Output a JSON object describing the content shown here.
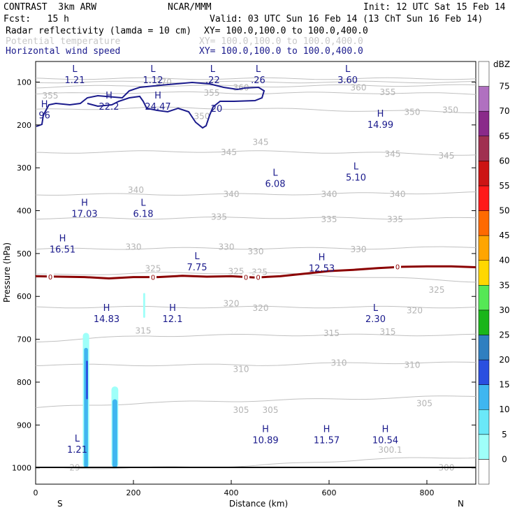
{
  "header": {
    "title": "CONTRAST  3km ARW",
    "source": "NCAR/MMM",
    "init": "Init: 12 UTC Sat 15 Feb 14",
    "fcst": "Fcst:   15 h",
    "valid": "Valid: 03 UTC Sun 16 Feb 14 (13 ChT Sun 16 Feb 14)",
    "fields": [
      {
        "name": "Radar reflectivity (lamda = 10 cm)",
        "xy": "XY= 100.0,100.0 to 100.0,400.0",
        "color": "#000000"
      },
      {
        "name": "Potential temperature",
        "xy": "XY= 100.0,100.0 to 100.0,400.0",
        "color": "#c8c8c8"
      },
      {
        "name": "Horizontal wind speed",
        "xy": "XY= 100.0,100.0 to 100.0,400.0",
        "color": "#1a1a8c"
      }
    ]
  },
  "chart_data": {
    "type": "cross-section",
    "xlabel": "Distance (km)",
    "ylabel": "Pressure (hPa)",
    "xlim": [
      0,
      900
    ],
    "ylim": [
      1038,
      52
    ],
    "x_ticks": [
      0,
      200,
      400,
      600,
      800
    ],
    "y_ticks": [
      100,
      200,
      300,
      400,
      500,
      600,
      700,
      800,
      900,
      1000
    ],
    "left_label": "S",
    "right_label": "N",
    "colorbar": {
      "unit": "dBZ",
      "levels": [
        "0",
        "5",
        "10",
        "15",
        "20",
        "25",
        "30",
        "35",
        "40",
        "45",
        "50",
        "55",
        "60",
        "65",
        "70",
        "75"
      ],
      "colors": [
        "#ffffff",
        "#9ffff9",
        "#6ae8f8",
        "#3fb6f0",
        "#2a4fe0",
        "#2f7fc0",
        "#1ab51a",
        "#55e855",
        "#ffd700",
        "#ffa500",
        "#ff6a00",
        "#ff1a1a",
        "#cc1414",
        "#a03050",
        "#8a2a8a",
        "#b070c0",
        "#ffffff"
      ]
    },
    "theta_lines": [
      {
        "value": 370,
        "p": [
          92,
          92,
          92,
          92,
          92
        ]
      },
      {
        "value": 365,
        "p": [
          100,
          100,
          100,
          100,
          100
        ]
      },
      {
        "value": 360,
        "p": [
          112,
          108,
          110,
          108,
          108
        ]
      },
      {
        "value": 355,
        "p": [
          128,
          124,
          126,
          125,
          128
        ]
      },
      {
        "value": 350,
        "p": [
          165,
          160,
          162,
          167,
          170
        ]
      },
      {
        "value": 345,
        "p": [
          265,
          262,
          262,
          265,
          270
        ]
      },
      {
        "value": 340,
        "p": [
          362,
          362,
          362,
          360,
          358
        ]
      },
      {
        "value": 335,
        "p": [
          418,
          418,
          416,
          418,
          418
        ]
      },
      {
        "value": 330,
        "p": [
          490,
          488,
          488,
          488,
          485
        ]
      },
      {
        "value": 325,
        "p": [
          550,
          546,
          545,
          555,
          565
        ]
      },
      {
        "value": 320,
        "p": [
          625,
          625,
          625,
          625,
          625
        ]
      },
      {
        "value": 315,
        "p": [
          705,
          692,
          690,
          690,
          690
        ]
      },
      {
        "value": 310,
        "p": [
          760,
          760,
          760,
          755,
          755
        ]
      },
      {
        "value": 305,
        "p": [
          860,
          848,
          843,
          838,
          832
        ]
      },
      {
        "value": 300,
        "p": [
          1000,
          1000,
          995,
          980,
          975
        ]
      }
    ],
    "theta_label_pos": [
      {
        "text": "355",
        "x": 30,
        "p": 132
      },
      {
        "text": "355",
        "x": 360,
        "p": 125
      },
      {
        "text": "355",
        "x": 720,
        "p": 124
      },
      {
        "text": "360",
        "x": 660,
        "p": 113
      },
      {
        "text": "360",
        "x": 420,
        "p": 113
      },
      {
        "text": "370",
        "x": 262,
        "p": 100
      },
      {
        "text": "350",
        "x": 340,
        "p": 180
      },
      {
        "text": "350",
        "x": 770,
        "p": 170
      },
      {
        "text": "350",
        "x": 848,
        "p": 165
      },
      {
        "text": "345",
        "x": 395,
        "p": 264
      },
      {
        "text": "345",
        "x": 460,
        "p": 240
      },
      {
        "text": "345",
        "x": 730,
        "p": 268
      },
      {
        "text": "345",
        "x": 840,
        "p": 272
      },
      {
        "text": "340",
        "x": 205,
        "p": 352
      },
      {
        "text": "340",
        "x": 400,
        "p": 362
      },
      {
        "text": "340",
        "x": 600,
        "p": 362
      },
      {
        "text": "340",
        "x": 740,
        "p": 362
      },
      {
        "text": "335",
        "x": 375,
        "p": 415
      },
      {
        "text": "335",
        "x": 600,
        "p": 420
      },
      {
        "text": "335",
        "x": 735,
        "p": 420
      },
      {
        "text": "330",
        "x": 200,
        "p": 485
      },
      {
        "text": "330",
        "x": 390,
        "p": 485
      },
      {
        "text": "330",
        "x": 450,
        "p": 495
      },
      {
        "text": "330",
        "x": 660,
        "p": 490
      },
      {
        "text": "325",
        "x": 240,
        "p": 535
      },
      {
        "text": "325",
        "x": 410,
        "p": 542
      },
      {
        "text": "325",
        "x": 458,
        "p": 543
      },
      {
        "text": "325",
        "x": 820,
        "p": 585
      },
      {
        "text": "320",
        "x": 400,
        "p": 617
      },
      {
        "text": "320",
        "x": 460,
        "p": 627
      },
      {
        "text": "320",
        "x": 775,
        "p": 633
      },
      {
        "text": "315",
        "x": 220,
        "p": 680
      },
      {
        "text": "315",
        "x": 605,
        "p": 686
      },
      {
        "text": "315",
        "x": 720,
        "p": 683
      },
      {
        "text": "310",
        "x": 420,
        "p": 770
      },
      {
        "text": "310",
        "x": 620,
        "p": 755
      },
      {
        "text": "310",
        "x": 770,
        "p": 760
      },
      {
        "text": "305",
        "x": 420,
        "p": 865
      },
      {
        "text": "305",
        "x": 480,
        "p": 865
      },
      {
        "text": "305",
        "x": 795,
        "p": 850
      },
      {
        "text": "300.1",
        "x": 725,
        "p": 958
      },
      {
        "text": "300",
        "x": 840,
        "p": 1000
      },
      {
        "text": "29",
        "x": 80,
        "p": 1000
      }
    ],
    "zero_line": {
      "color": "#8b0000",
      "x": [
        0,
        50,
        100,
        150,
        200,
        250,
        300,
        350,
        400,
        450,
        500,
        550,
        600,
        650,
        700,
        750,
        800,
        850,
        900
      ],
      "p": [
        553,
        554,
        555,
        558,
        555,
        555,
        552,
        554,
        553,
        556,
        553,
        547,
        541,
        538,
        534,
        531,
        530,
        530,
        532
      ]
    },
    "zero_labels": [
      {
        "text": "0",
        "x": 30,
        "p": 554
      },
      {
        "text": "0",
        "x": 240,
        "p": 555
      },
      {
        "text": "0",
        "x": 430,
        "p": 555
      },
      {
        "text": "0",
        "x": 455,
        "p": 555
      },
      {
        "text": "0",
        "x": 740,
        "p": 530
      }
    ],
    "wind_contour_label": {
      "text": "20",
      "x": 370,
      "p": 163
    },
    "extrema": [
      {
        "type": "L",
        "value": "1.21",
        "x": 80,
        "p": 83
      },
      {
        "type": "L",
        "value": "1.12",
        "x": 240,
        "p": 83
      },
      {
        "type": "L",
        "value": ".22",
        "x": 362,
        "p": 83
      },
      {
        "type": "L",
        "value": ".26",
        "x": 455,
        "p": 83
      },
      {
        "type": "L",
        "value": "3.60",
        "x": 638,
        "p": 83
      },
      {
        "type": "H",
        "value": "96",
        "x": 18,
        "p": 165
      },
      {
        "type": "H",
        "value": "22.2",
        "x": 150,
        "p": 145
      },
      {
        "type": "H",
        "value": "24.47",
        "x": 250,
        "p": 145
      },
      {
        "type": "H",
        "value": "14.99",
        "x": 705,
        "p": 187
      },
      {
        "type": "L",
        "value": "6.08",
        "x": 490,
        "p": 325
      },
      {
        "type": "L",
        "value": "5.10",
        "x": 655,
        "p": 310
      },
      {
        "type": "H",
        "value": "17.03",
        "x": 100,
        "p": 395
      },
      {
        "type": "L",
        "value": "6.18",
        "x": 220,
        "p": 395
      },
      {
        "type": "H",
        "value": "16.51",
        "x": 55,
        "p": 478
      },
      {
        "type": "L",
        "value": "7.75",
        "x": 330,
        "p": 520
      },
      {
        "type": "H",
        "value": "12.53",
        "x": 585,
        "p": 522
      },
      {
        "type": "H",
        "value": "14.83",
        "x": 145,
        "p": 640
      },
      {
        "type": "H",
        "value": "12.1",
        "x": 280,
        "p": 640
      },
      {
        "type": "L",
        "value": "2.30",
        "x": 695,
        "p": 640
      },
      {
        "type": "H",
        "value": "10.89",
        "x": 470,
        "p": 923
      },
      {
        "type": "H",
        "value": "11.57",
        "x": 595,
        "p": 923
      },
      {
        "type": "H",
        "value": "10.54",
        "x": 715,
        "p": 923
      },
      {
        "type": "L",
        "value": "1.21",
        "x": 85,
        "p": 945
      }
    ],
    "reflectivity_cells": [
      {
        "x": 103,
        "width_km": 13,
        "p_top": 685,
        "p_bottom": 1005,
        "color": "#9ffff9"
      },
      {
        "x": 103,
        "width_km": 8,
        "p_top": 720,
        "p_bottom": 1005,
        "color": "#3fb6f0"
      },
      {
        "x": 105,
        "width_km": 4,
        "p_top": 750,
        "p_bottom": 840,
        "color": "#2a4fe0"
      },
      {
        "x": 162,
        "width_km": 14,
        "p_top": 810,
        "p_bottom": 1010,
        "color": "#9ffff9"
      },
      {
        "x": 162,
        "width_km": 10,
        "p_top": 840,
        "p_bottom": 1010,
        "color": "#3fb6f0"
      },
      {
        "x": 222,
        "width_km": 4,
        "p_top": 592,
        "p_bottom": 650,
        "color": "#9ffff9"
      }
    ]
  }
}
